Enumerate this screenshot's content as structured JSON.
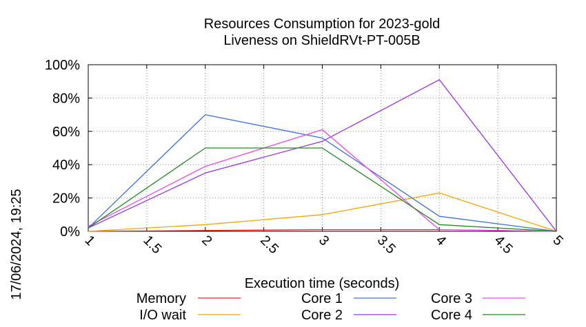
{
  "chart_data": {
    "type": "line",
    "title": "Resources Consumption for 2023-gold",
    "subtitle": "Liveness on ShieldRVt-PT-005B",
    "xlabel": "Execution time (seconds)",
    "ylabel": "",
    "timestamp": "17/06/2024, 19:25",
    "xlim": [
      1,
      5
    ],
    "ylim": [
      0,
      100
    ],
    "grid": true,
    "legend_position": "bottom",
    "x_ticks": [
      "1",
      "1.5",
      "2",
      "2.5",
      "3",
      "3.5",
      "4",
      "4.5",
      "5"
    ],
    "y_ticks": [
      "0%",
      "20%",
      "40%",
      "60%",
      "80%",
      "100%"
    ],
    "x": [
      1,
      2,
      3,
      4,
      5
    ],
    "series": [
      {
        "name": "Memory",
        "color": "#e8231e",
        "values": [
          0,
          0.5,
          1,
          1,
          0
        ]
      },
      {
        "name": "I/O wait",
        "color": "#f5a400",
        "values": [
          0,
          4,
          10,
          23,
          0
        ]
      },
      {
        "name": "Core 1",
        "color": "#3a6fd8",
        "values": [
          2,
          70,
          56,
          9,
          0
        ]
      },
      {
        "name": "Core 2",
        "color": "#9b30e0",
        "values": [
          2,
          35,
          54,
          91,
          0
        ]
      },
      {
        "name": "Core 3",
        "color": "#ee44ee",
        "values": [
          3,
          39,
          61,
          1,
          0
        ]
      },
      {
        "name": "Core 4",
        "color": "#1f8a1f",
        "values": [
          2,
          50,
          50,
          4,
          0
        ]
      }
    ]
  }
}
